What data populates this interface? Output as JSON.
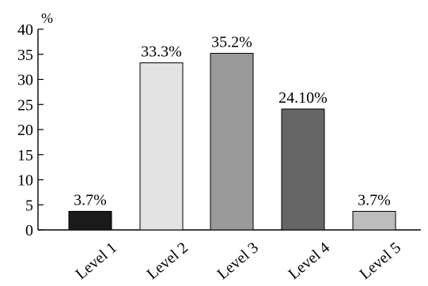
{
  "chart_data": {
    "type": "bar",
    "title": "",
    "xlabel": "",
    "ylabel": "%",
    "ylim": [
      0,
      40
    ],
    "yticks": [
      0,
      5,
      10,
      15,
      20,
      25,
      30,
      35,
      40
    ],
    "grid": false,
    "categories": [
      "Level 1",
      "Level 2",
      "Level 3",
      "Level 4",
      "Level 5"
    ],
    "values": [
      3.7,
      33.3,
      35.2,
      24.1,
      3.7
    ],
    "data_labels": [
      "3.7%",
      "33.3%",
      "35.2%",
      "24.10%",
      "3.7%"
    ],
    "colors": [
      "#1a1a1a",
      "#e3e3e3",
      "#9a9a9a",
      "#666666",
      "#bdbdbd"
    ]
  }
}
